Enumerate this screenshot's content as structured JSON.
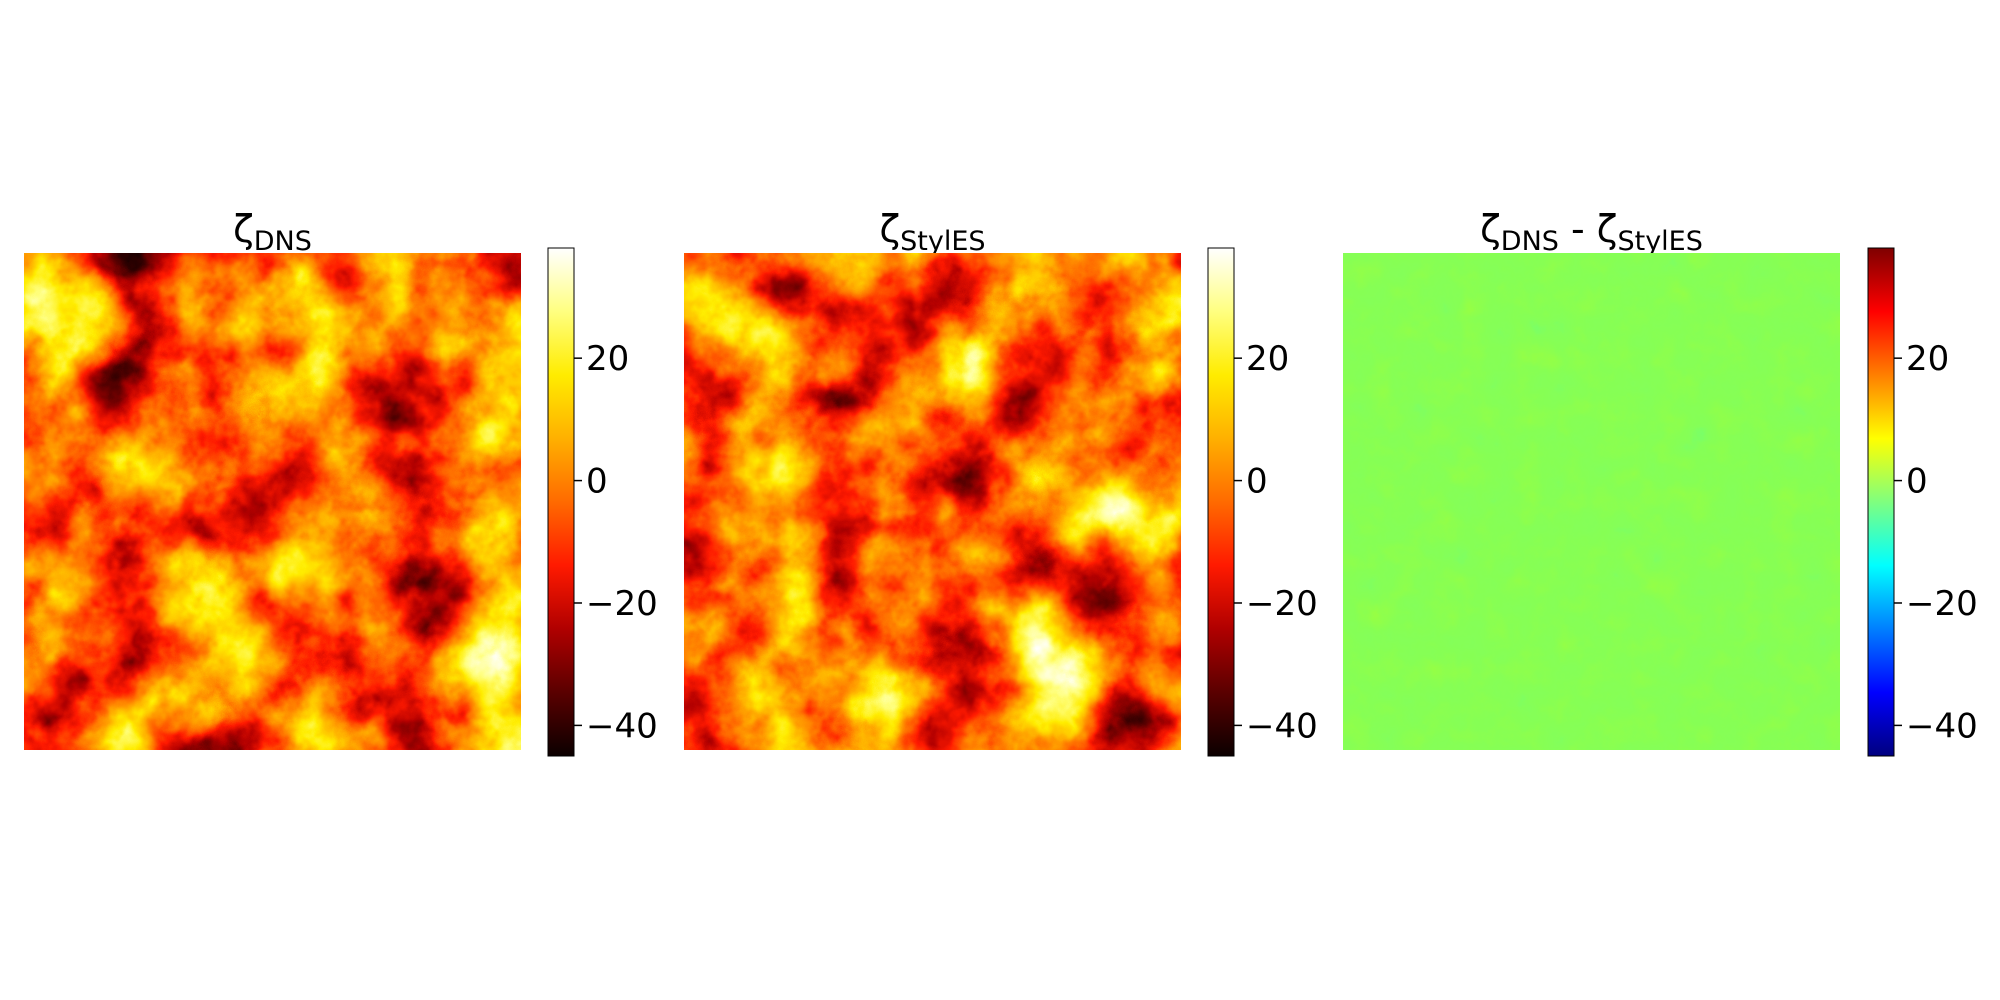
{
  "figure": {
    "background": "#ffffff"
  },
  "chart_data": [
    {
      "type": "heatmap",
      "title": "ζ_DNS",
      "title_parts": {
        "base": "ζ",
        "sub": "DNS"
      },
      "colormap": "hot",
      "colormap_stops": [
        "#0b0000",
        "#5a0000",
        "#b00000",
        "#ff1a00",
        "#ff6a00",
        "#ffb000",
        "#ffec00",
        "#ffff80",
        "#ffffff"
      ],
      "vmin": -45,
      "vmax": 38,
      "field": "turbulent vorticity field, mostly in the -10 to 20 range with dark vortex cores near -40 and bright cores near 30",
      "colorbar": {
        "ticks": [
          20,
          0,
          -20,
          -40
        ],
        "tick_labels": [
          "20",
          "0",
          "−20",
          "−40"
        ]
      },
      "axes_visible": false
    },
    {
      "type": "heatmap",
      "title": "ζ_StylES",
      "title_parts": {
        "base": "ζ",
        "sub": "StylES"
      },
      "colormap": "hot",
      "colormap_stops": [
        "#0b0000",
        "#5a0000",
        "#b00000",
        "#ff1a00",
        "#ff6a00",
        "#ffb000",
        "#ffec00",
        "#ffff80",
        "#ffffff"
      ],
      "vmin": -45,
      "vmax": 38,
      "field": "turbulent vorticity field visually identical to the DNS panel",
      "colorbar": {
        "ticks": [
          20,
          0,
          -20,
          -40
        ],
        "tick_labels": [
          "20",
          "0",
          "−20",
          "−40"
        ]
      },
      "axes_visible": false
    },
    {
      "type": "heatmap",
      "title": "ζ_DNS - ζ_StylES",
      "title_parts": {
        "base1": "ζ",
        "sub1": "DNS",
        "sep": " - ",
        "base2": "ζ",
        "sub2": "StylES"
      },
      "colormap": "jet",
      "colormap_stops": [
        "#00007f",
        "#0000ff",
        "#007fff",
        "#00ffff",
        "#7fff7f",
        "#ffff00",
        "#ff7f00",
        "#ff0000",
        "#7f0000"
      ],
      "vmin": -45,
      "vmax": 38,
      "field": "difference field near zero everywhere (uniform light green) with faint filament texture",
      "colorbar": {
        "ticks": [
          20,
          0,
          -20,
          -40
        ],
        "tick_labels": [
          "20",
          "0",
          "−20",
          "−40"
        ]
      },
      "axes_visible": false
    }
  ]
}
